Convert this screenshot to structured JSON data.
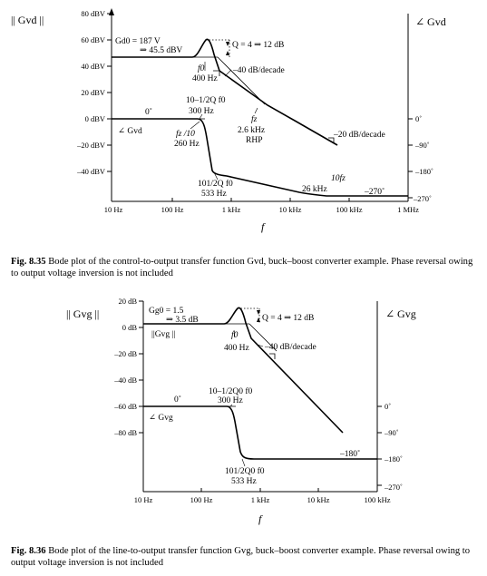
{
  "figures": [
    {
      "caption_label": "Fig. 8.35",
      "caption_text": "Bode plot of the control-to-output transfer function Gvd, buck–boost converter example. Phase reversal owing to output voltage inversion is not included",
      "left_axis_title": "|| Gvd ||",
      "right_axis_title": "∠ Gvd",
      "mag_ticks": [
        "80 dBV",
        "60 dBV",
        "40 dBV",
        "20 dBV",
        "0 dBV",
        "–20 dBV",
        "–40 dBV"
      ],
      "phase_ticks": [
        "0˚",
        "–90˚",
        "–180˚",
        "–270˚"
      ],
      "freq_ticks": [
        "10 Hz",
        "100 Hz",
        "1 kHz",
        "10 kHz",
        "100 kHz",
        "1 MHz"
      ],
      "freq_axis_label": "f",
      "annotations": {
        "gain_1": "Gd0 = 187 V",
        "gain_2": "⇒ 45.5 dBV",
        "q": "Q = 4 ⇒ 12 dB",
        "f0_1": "f0",
        "f0_2": "400 Hz",
        "slope": "–40 dB/decade",
        "f300_1": "10–1/2Q f0",
        "f300_2": "300 Hz",
        "phase_0": "0˚",
        "phase_name": "∠ Gvd",
        "fz10_1": "fz /10",
        "fz10_2": "260 Hz",
        "fz_1": "fz",
        "fz_2": "2.6 kHz",
        "fz_3": "RHP",
        "slope2": "–20 dB/decade",
        "f533_1": "101/2Q f0",
        "f533_2": "533 Hz",
        "fz10x_1": "10fz",
        "fz10x_2": "26 kHz",
        "phase_270": "–270˚"
      }
    },
    {
      "caption_label": "Fig. 8.36",
      "caption_text": "Bode plot of the line-to-output transfer function Gvg, buck–boost converter example. Phase reversal owing to output voltage inversion is not included",
      "left_axis_title": "|| Gvg ||",
      "right_axis_title": "∠ Gvg",
      "mag_ticks": [
        "20 dB",
        "0 dB",
        "–20 dB",
        "–40 dB",
        "–60 dB",
        "–80 dB"
      ],
      "phase_ticks": [
        "0˚",
        "–90˚",
        "–180˚",
        "–270˚"
      ],
      "freq_ticks": [
        "10 Hz",
        "100 Hz",
        "1 kHz",
        "10 kHz",
        "100 kHz"
      ],
      "freq_axis_label": "f",
      "annotations": {
        "gain_1": "Gg0 = 1.5",
        "gain_2": "⇒ 3.5 dB",
        "mag_name": "||Gvg ||",
        "q": "Q = 4 ⇒ 12 dB",
        "f0_1": "f0",
        "f0_2": "400 Hz",
        "slope": "–40 dB/decade",
        "f300_1": "10–1/2Q0 f0",
        "f300_2": "300 Hz",
        "phase_0": "0˚",
        "phase_name": "∠ Gvg",
        "phase_180": "–180˚",
        "f533_1": "101/2Q0 f0",
        "f533_2": "533 Hz"
      }
    }
  ]
}
